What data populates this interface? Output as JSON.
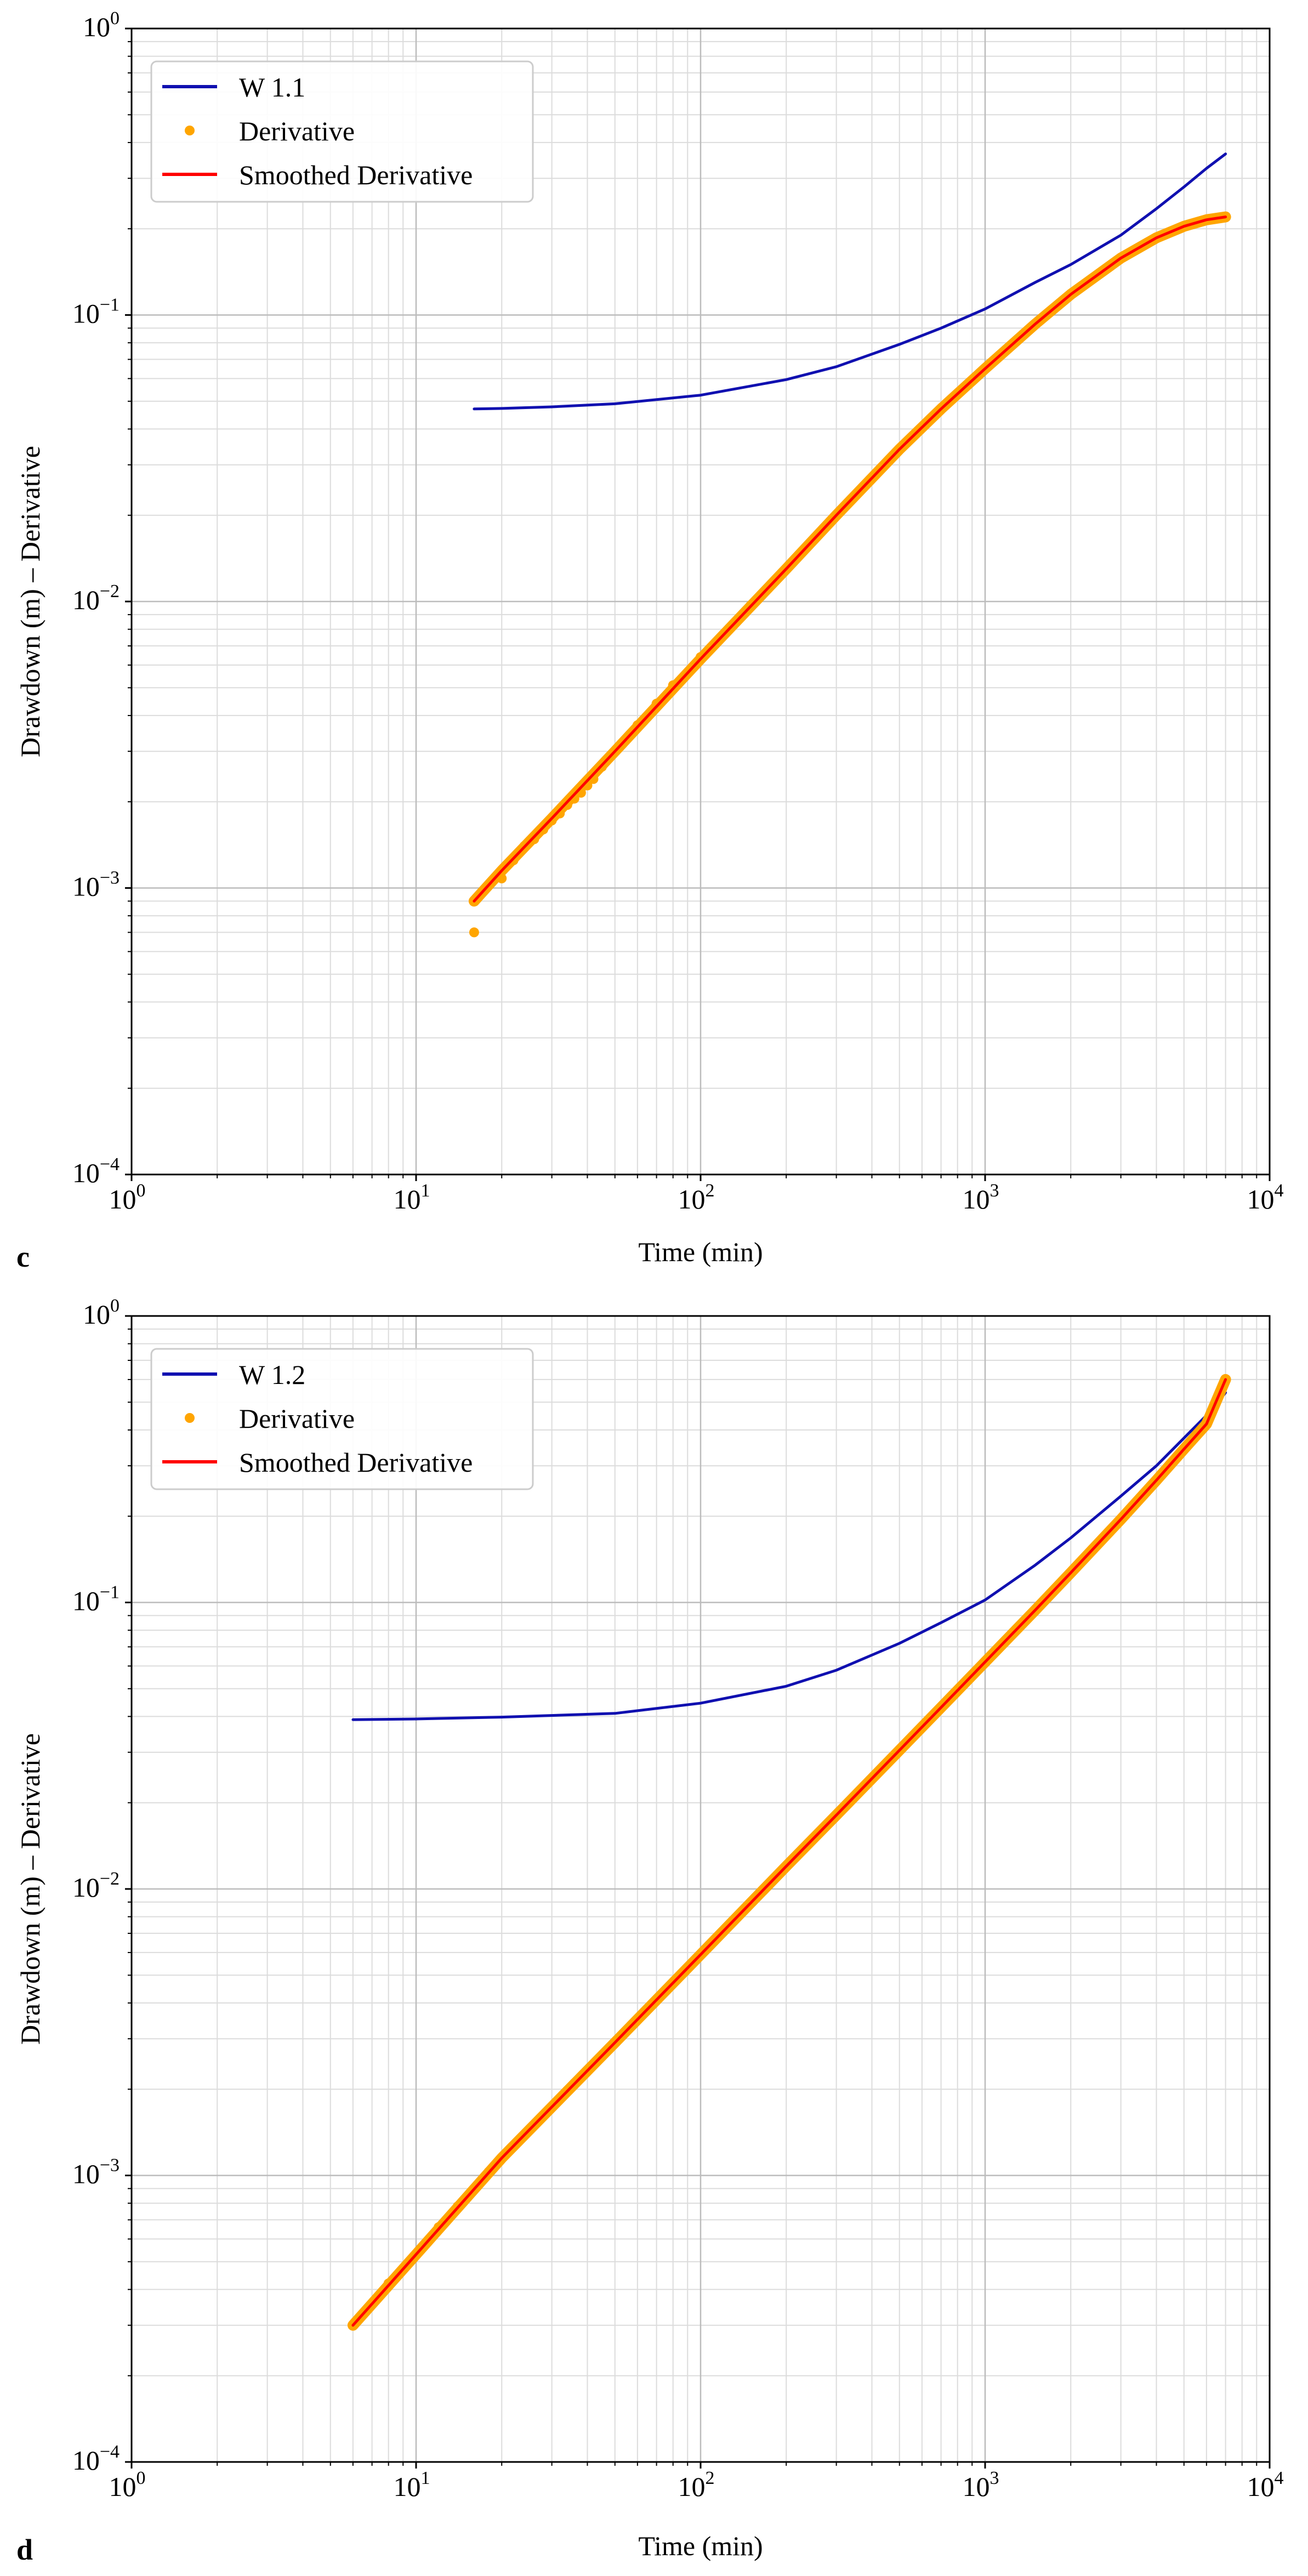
{
  "chart_data": [
    {
      "panel_label": "c",
      "type": "line",
      "xscale": "log",
      "yscale": "log",
      "xlim": [
        1,
        10000
      ],
      "ylim": [
        0.0001,
        1
      ],
      "xlabel": "Time (min)",
      "ylabel": "Drawdown (m) – Derivative",
      "grid": true,
      "legend_position": "top-left",
      "x_ticks": [
        {
          "value": 1,
          "base": "10",
          "exp": "0"
        },
        {
          "value": 10,
          "base": "10",
          "exp": "1"
        },
        {
          "value": 100,
          "base": "10",
          "exp": "2"
        },
        {
          "value": 1000,
          "base": "10",
          "exp": "3"
        },
        {
          "value": 10000,
          "base": "10",
          "exp": "4"
        }
      ],
      "y_ticks": [
        {
          "value": 0.0001,
          "base": "10",
          "exp": "−4"
        },
        {
          "value": 0.001,
          "base": "10",
          "exp": "−3"
        },
        {
          "value": 0.01,
          "base": "10",
          "exp": "−2"
        },
        {
          "value": 0.1,
          "base": "10",
          "exp": "−1"
        },
        {
          "value": 1,
          "base": "10",
          "exp": "0"
        }
      ],
      "series": [
        {
          "name": "W 1.1",
          "kind": "line",
          "color": "#1010b0",
          "x": [
            16,
            20,
            30,
            50,
            100,
            200,
            300,
            500,
            700,
            1000,
            1500,
            2000,
            3000,
            4000,
            5000,
            6000,
            7000
          ],
          "y": [
            0.047,
            0.0472,
            0.0478,
            0.049,
            0.0525,
            0.0595,
            0.066,
            0.079,
            0.09,
            0.105,
            0.13,
            0.15,
            0.19,
            0.235,
            0.28,
            0.325,
            0.365
          ]
        },
        {
          "name": "Derivative",
          "kind": "points",
          "color": "#ffa500",
          "x": [
            16,
            20,
            22,
            24,
            26,
            28,
            30,
            32,
            34,
            36,
            38,
            40,
            42,
            45,
            50,
            60,
            70,
            80,
            100,
            150,
            200,
            300,
            400,
            500,
            700,
            1000,
            1500,
            2000,
            3000,
            4000,
            5000,
            6000,
            7000
          ],
          "y": [
            0.0007,
            0.00108,
            0.00125,
            0.0014,
            0.00148,
            0.0016,
            0.00172,
            0.00182,
            0.00195,
            0.00205,
            0.00215,
            0.00228,
            0.0024,
            0.00265,
            0.003,
            0.0037,
            0.0044,
            0.0051,
            0.0064,
            0.0097,
            0.013,
            0.02,
            0.027,
            0.034,
            0.047,
            0.065,
            0.093,
            0.118,
            0.158,
            0.186,
            0.204,
            0.215,
            0.22
          ]
        },
        {
          "name": "Smoothed Derivative",
          "kind": "line",
          "color": "#ff0000",
          "x": [
            16,
            20,
            30,
            50,
            100,
            200,
            300,
            500,
            700,
            1000,
            1500,
            2000,
            3000,
            4000,
            5000,
            6000,
            7000
          ],
          "y": [
            0.0009,
            0.00115,
            0.00175,
            0.003,
            0.0063,
            0.013,
            0.02,
            0.034,
            0.047,
            0.065,
            0.093,
            0.118,
            0.158,
            0.186,
            0.204,
            0.215,
            0.22
          ]
        }
      ]
    },
    {
      "panel_label": "d",
      "type": "line",
      "xscale": "log",
      "yscale": "log",
      "xlim": [
        1,
        10000
      ],
      "ylim": [
        0.0001,
        1
      ],
      "xlabel": "Time (min)",
      "ylabel": "Drawdown (m) – Derivative",
      "grid": true,
      "legend_position": "top-left",
      "x_ticks": [
        {
          "value": 1,
          "base": "10",
          "exp": "0"
        },
        {
          "value": 10,
          "base": "10",
          "exp": "1"
        },
        {
          "value": 100,
          "base": "10",
          "exp": "2"
        },
        {
          "value": 1000,
          "base": "10",
          "exp": "3"
        },
        {
          "value": 10000,
          "base": "10",
          "exp": "4"
        }
      ],
      "y_ticks": [
        {
          "value": 0.0001,
          "base": "10",
          "exp": "−4"
        },
        {
          "value": 0.001,
          "base": "10",
          "exp": "−3"
        },
        {
          "value": 0.01,
          "base": "10",
          "exp": "−2"
        },
        {
          "value": 0.1,
          "base": "10",
          "exp": "−1"
        },
        {
          "value": 1,
          "base": "10",
          "exp": "0"
        }
      ],
      "series": [
        {
          "name": "W 1.2",
          "kind": "line",
          "color": "#1010b0",
          "x": [
            6,
            10,
            20,
            50,
            100,
            200,
            300,
            500,
            700,
            1000,
            1500,
            2000,
            3000,
            4000,
            5000,
            6000,
            7000
          ],
          "y": [
            0.039,
            0.0392,
            0.0398,
            0.041,
            0.0445,
            0.051,
            0.058,
            0.072,
            0.085,
            0.102,
            0.135,
            0.168,
            0.235,
            0.3,
            0.375,
            0.45,
            0.54
          ]
        },
        {
          "name": "Derivative",
          "kind": "points",
          "color": "#ffa500",
          "x": [
            6,
            8,
            10,
            12,
            14,
            16,
            18,
            20,
            22,
            24,
            26,
            28,
            30,
            32,
            34,
            36,
            38,
            40,
            45,
            50,
            60,
            70,
            80,
            100,
            150,
            200,
            300,
            500,
            700,
            1000,
            1500,
            2000,
            3000,
            4000,
            5000,
            6000,
            7000
          ],
          "y": [
            0.0003,
            0.00042,
            0.00053,
            0.00066,
            0.00078,
            0.0009,
            0.00103,
            0.00115,
            0.00127,
            0.00139,
            0.0015,
            0.00162,
            0.00174,
            0.00186,
            0.00198,
            0.0021,
            0.00221,
            0.00233,
            0.00262,
            0.00291,
            0.0035,
            0.0041,
            0.0047,
            0.0059,
            0.0089,
            0.012,
            0.0181,
            0.0305,
            0.043,
            0.062,
            0.094,
            0.127,
            0.195,
            0.267,
            0.343,
            0.42,
            0.6
          ]
        },
        {
          "name": "Smoothed Derivative",
          "kind": "line",
          "color": "#ff0000",
          "x": [
            6,
            10,
            20,
            50,
            100,
            200,
            300,
            500,
            700,
            1000,
            1500,
            2000,
            3000,
            4000,
            5000,
            6000,
            7000
          ],
          "y": [
            0.0003,
            0.00053,
            0.00115,
            0.00291,
            0.0059,
            0.012,
            0.0181,
            0.0305,
            0.043,
            0.062,
            0.094,
            0.127,
            0.195,
            0.267,
            0.343,
            0.42,
            0.6
          ]
        }
      ]
    }
  ]
}
